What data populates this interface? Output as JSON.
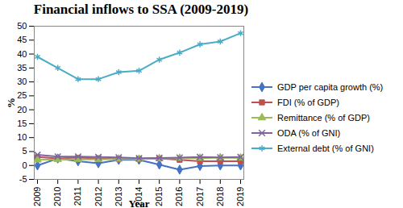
{
  "chart_data": {
    "type": "line",
    "title": "Financial inflows to SSA (2009-2019)",
    "x_label": "Year",
    "y_label": "%",
    "x": [
      2009,
      2010,
      2011,
      2012,
      2013,
      2014,
      2015,
      2016,
      2017,
      2018,
      2019
    ],
    "xlim": [
      2009,
      2019
    ],
    "xticks": [
      2009,
      2010,
      2011,
      2012,
      2013,
      2014,
      2015,
      2016,
      2017,
      2018,
      2019
    ],
    "ylim": [
      -5,
      50
    ],
    "yticks": [
      -5,
      0,
      5,
      10,
      15,
      20,
      25,
      30,
      35,
      40,
      45,
      50
    ],
    "grid": false,
    "legend": "right",
    "series": [
      {
        "name": "GDP per capita growth (%)",
        "color": "#4472c4",
        "marker": "diamond",
        "values": [
          0.0,
          2.5,
          1.5,
          0.8,
          2.0,
          2.0,
          0.3,
          -1.5,
          -0.2,
          0.0,
          0.0
        ]
      },
      {
        "name": "FDI (% of GDP)",
        "color": "#c0504d",
        "marker": "square",
        "values": [
          3.0,
          2.5,
          2.8,
          2.5,
          2.4,
          2.4,
          2.5,
          2.0,
          1.5,
          1.5,
          1.5
        ]
      },
      {
        "name": "Remittance (% of GDP)",
        "color": "#9bbb59",
        "marker": "triangle",
        "values": [
          2.0,
          2.2,
          2.2,
          2.2,
          2.3,
          2.3,
          2.5,
          2.6,
          2.6,
          2.8,
          2.7
        ]
      },
      {
        "name": "ODA (% of GNI)",
        "color": "#8064a2",
        "marker": "times",
        "values": [
          3.8,
          3.2,
          3.2,
          3.0,
          2.9,
          2.6,
          2.7,
          2.8,
          3.0,
          2.9,
          3.0
        ]
      },
      {
        "name": "External debt (% of GNI)",
        "color": "#4bacc6",
        "marker": "asterisk",
        "values": [
          39,
          35,
          31,
          31,
          33.5,
          34,
          38,
          40.5,
          43.5,
          44.5,
          47.5
        ]
      }
    ]
  }
}
